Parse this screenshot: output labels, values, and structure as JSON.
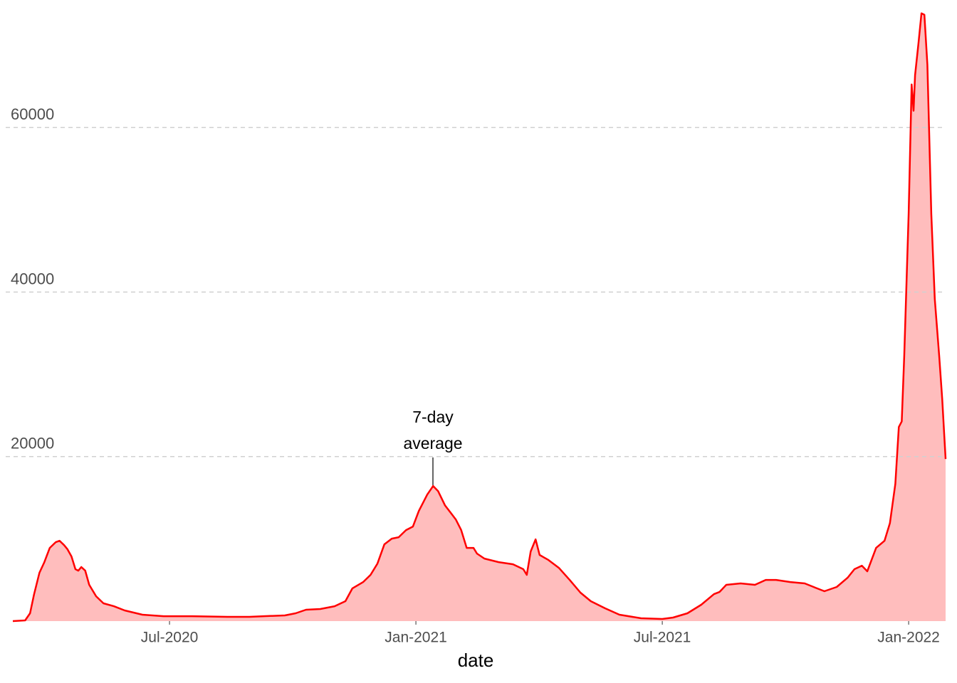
{
  "chart_data": {
    "type": "area",
    "x_label": "date",
    "annotation": [
      "7-day",
      "average"
    ],
    "xlim": [
      2020.182,
      2022.075
    ],
    "xticks": [
      {
        "value": 2020.5,
        "label": "Jul-2020"
      },
      {
        "value": 2021.0,
        "label": "Jan-2021"
      },
      {
        "value": 2021.5,
        "label": "Jul-2021"
      },
      {
        "value": 2022.0,
        "label": "Jan-2022"
      }
    ],
    "ylim": [
      0,
      75500
    ],
    "yticks": [
      20000,
      40000,
      60000
    ],
    "grid": true,
    "series": [
      {
        "color": "#ff0000",
        "fill": "#ffbdbd",
        "x": [
          2020.182,
          2020.207,
          2020.217,
          2020.225,
          2020.236,
          2020.246,
          2020.257,
          2020.269,
          2020.277,
          2020.286,
          2020.293,
          2020.301,
          2020.309,
          2020.315,
          2020.321,
          2020.329,
          2020.337,
          2020.351,
          2020.366,
          2020.387,
          2020.409,
          2020.445,
          2020.488,
          2020.546,
          2020.618,
          2020.662,
          2020.691,
          2020.734,
          2020.756,
          2020.777,
          2020.806,
          2020.835,
          2020.857,
          2020.871,
          2020.893,
          2020.908,
          2020.922,
          2020.936,
          2020.951,
          2020.965,
          2020.98,
          2020.994,
          2021.006,
          2021.023,
          2021.035,
          2021.045,
          2021.059,
          2021.081,
          2021.092,
          2021.103,
          2021.117,
          2021.124,
          2021.139,
          2021.168,
          2021.197,
          2021.218,
          2021.225,
          2021.233,
          2021.243,
          2021.251,
          2021.269,
          2021.29,
          2021.312,
          2021.334,
          2021.355,
          2021.384,
          2021.413,
          2021.457,
          2021.5,
          2021.522,
          2021.551,
          2021.579,
          2021.605,
          2021.616,
          2021.63,
          2021.659,
          2021.688,
          2021.71,
          2021.731,
          2021.76,
          2021.789,
          2021.811,
          2021.829,
          2021.854,
          2021.876,
          2021.89,
          2021.905,
          2021.916,
          2021.934,
          2021.951,
          2021.962,
          2021.973,
          2021.98,
          2021.986,
          2021.991,
          2022.0,
          2022.006,
          2022.01,
          2022.013,
          2022.02,
          2022.026,
          2022.032,
          2022.038,
          2022.046,
          2022.053,
          2022.062,
          2022.068,
          2022.075
        ],
        "values": [
          0,
          86,
          950,
          3240,
          5880,
          7170,
          8900,
          9590,
          9760,
          9240,
          8730,
          7860,
          6310,
          6130,
          6570,
          6130,
          4410,
          3020,
          2160,
          1810,
          1300,
          780,
          600,
          600,
          520,
          520,
          600,
          690,
          950,
          1380,
          1470,
          1810,
          2420,
          3970,
          4750,
          5620,
          7000,
          9330,
          10020,
          10200,
          11060,
          11490,
          13390,
          15380,
          16420,
          15810,
          14080,
          12360,
          11060,
          8900,
          8900,
          8210,
          7600,
          7170,
          6910,
          6310,
          5620,
          8470,
          9940,
          8040,
          7430,
          6480,
          5010,
          3460,
          2420,
          1560,
          780,
          350,
          260,
          430,
          950,
          1990,
          3280,
          3540,
          4410,
          4580,
          4410,
          5010,
          5010,
          4750,
          4580,
          4060,
          3630,
          4150,
          5270,
          6310,
          6740,
          6050,
          8900,
          9760,
          11920,
          16680,
          23590,
          24280,
          32230,
          49510,
          65230,
          62040,
          66350,
          70240,
          73870,
          73700,
          67650,
          49510,
          39140,
          32230,
          27040,
          19700
        ]
      }
    ]
  }
}
